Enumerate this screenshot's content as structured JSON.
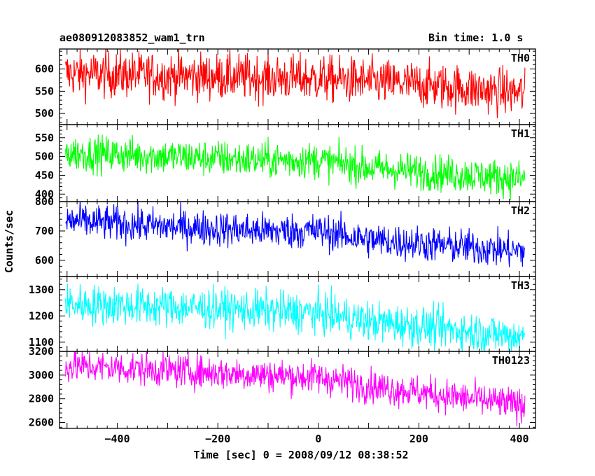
{
  "header": {
    "title": "ae080912083852_wam1_trn",
    "bin_time": "Bin time: 1.0 s"
  },
  "chart_data": {
    "type": "line",
    "xlabel": "Time [sec] 0 = 2008/09/12 08:38:52",
    "ylabel": "Counts/sec",
    "xlim": [
      -515,
      432
    ],
    "x_start": -503,
    "x_end": 411,
    "x_step": 1,
    "x_ticks": [
      -400,
      -200,
      0,
      200,
      400
    ],
    "x_tick_labels": [
      "−400",
      "−200",
      "0",
      "200",
      "400"
    ],
    "grid": false,
    "panels": [
      {
        "name": "TH0",
        "color": "#ff0000",
        "ylim": [
          475,
          645
        ],
        "ticks": [
          500,
          550,
          600
        ],
        "trend": [
          [
            -503,
            590
          ],
          [
            -300,
            585
          ],
          [
            0,
            578
          ],
          [
            200,
            565
          ],
          [
            411,
            545
          ]
        ],
        "noise": 26
      },
      {
        "name": "TH1",
        "color": "#00ff00",
        "ylim": [
          380,
          585
        ],
        "ticks": [
          400,
          450,
          500,
          550
        ],
        "trend": [
          [
            -503,
            510
          ],
          [
            -300,
            500
          ],
          [
            -100,
            490
          ],
          [
            0,
            490
          ],
          [
            100,
            470
          ],
          [
            411,
            440
          ]
        ],
        "noise": 24
      },
      {
        "name": "TH2",
        "color": "#0000ff",
        "ylim": [
          545,
          800
        ],
        "ticks": [
          600,
          700,
          800
        ],
        "trend": [
          [
            -503,
            735
          ],
          [
            -300,
            715
          ],
          [
            -100,
            700
          ],
          [
            0,
            700
          ],
          [
            100,
            670
          ],
          [
            411,
            630
          ]
        ],
        "noise": 30
      },
      {
        "name": "TH3",
        "color": "#00ffff",
        "ylim": [
          1065,
          1350
        ],
        "ticks": [
          1100,
          1200,
          1300
        ],
        "trend": [
          [
            -503,
            1245
          ],
          [
            -300,
            1235
          ],
          [
            -100,
            1220
          ],
          [
            0,
            1210
          ],
          [
            100,
            1180
          ],
          [
            411,
            1120
          ]
        ],
        "noise": 38
      },
      {
        "name": "TH0123",
        "color": "#ff00ff",
        "ylim": [
          2550,
          3200
        ],
        "ticks": [
          2600,
          2800,
          3000,
          3200
        ],
        "trend": [
          [
            -503,
            3080
          ],
          [
            -300,
            3040
          ],
          [
            -100,
            3000
          ],
          [
            0,
            2980
          ],
          [
            100,
            2910
          ],
          [
            411,
            2740
          ]
        ],
        "noise": 70
      }
    ]
  }
}
